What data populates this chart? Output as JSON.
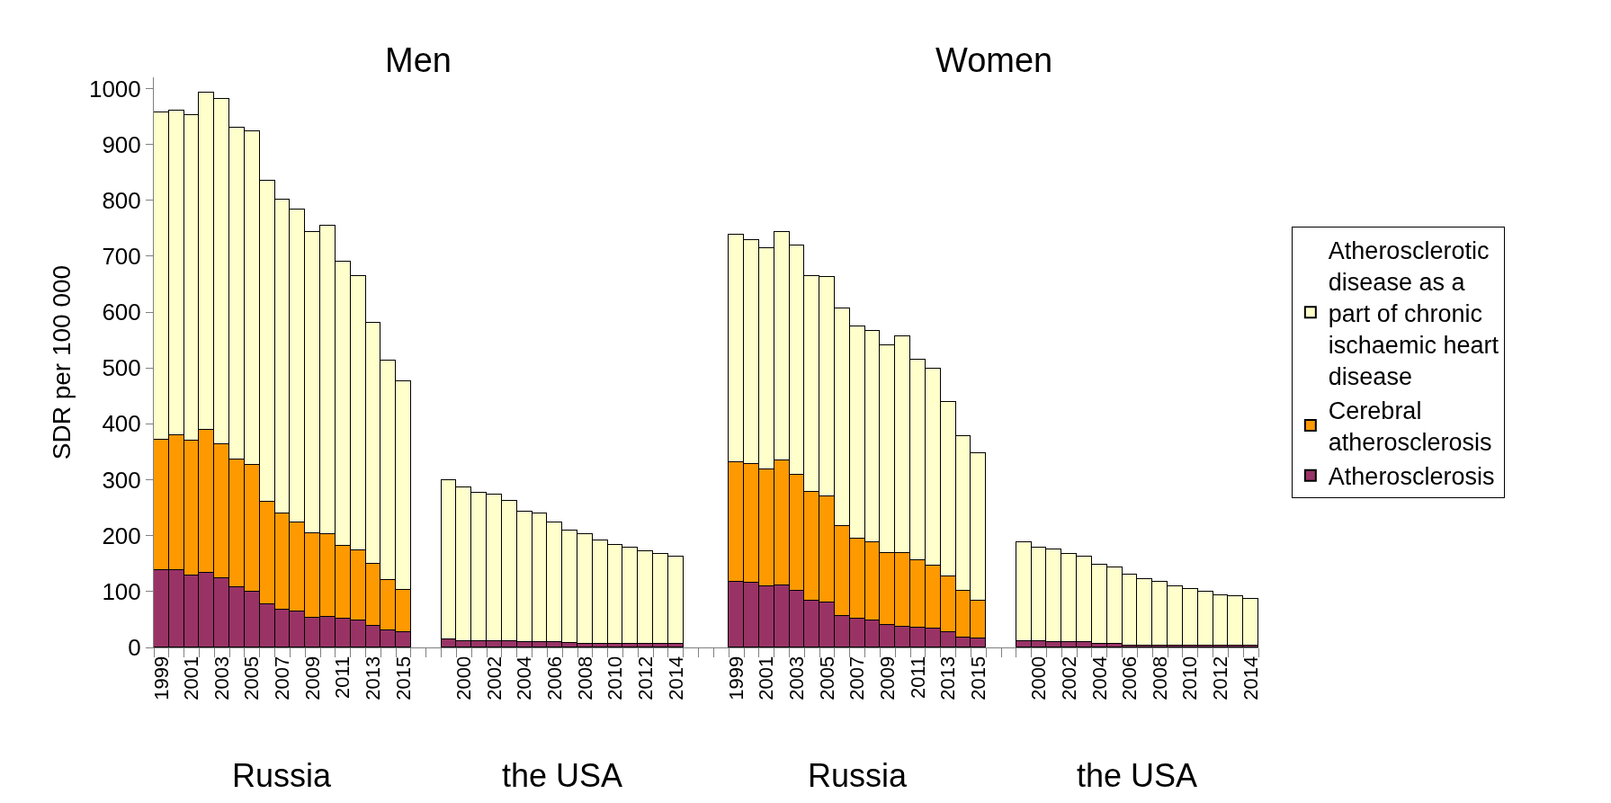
{
  "chart_data": {
    "type": "bar",
    "stacked": true,
    "ylabel": "SDR per 100 000",
    "categories": [
      "1999",
      null,
      "2001",
      null,
      "2003",
      null,
      "2005",
      null,
      "2007",
      null,
      "2009",
      null,
      "2011",
      null,
      "2013",
      null,
      "2015",
      null,
      null,
      null,
      "2000",
      null,
      "2002",
      null,
      "2004",
      null,
      "2006",
      null,
      "2008",
      null,
      "2010",
      null,
      "2012",
      null,
      "2014",
      null,
      null,
      null,
      "1999",
      null,
      "2001",
      null,
      "2003",
      null,
      "2005",
      null,
      "2007",
      null,
      "2009",
      null,
      "2011",
      null,
      "2013",
      null,
      "2015",
      null,
      null,
      null,
      "2000",
      null,
      "2002",
      null,
      "2004",
      null,
      "2006",
      null,
      "2008",
      null,
      "2010",
      null,
      "2012",
      null,
      "2014"
    ],
    "series": [
      {
        "name": "Atherosclerosis",
        "color": "#993366",
        "values": [
          139,
          139,
          129,
          134,
          124,
          107,
          100,
          78,
          68,
          64,
          53,
          55,
          51,
          49,
          39,
          31,
          27,
          null,
          null,
          14,
          12,
          12,
          12,
          11,
          10,
          10,
          9,
          8,
          7,
          6,
          6,
          6,
          6,
          6,
          6,
          null,
          null,
          null,
          118,
          116,
          109,
          111,
          101,
          84,
          80,
          57,
          52,
          48,
          41,
          37,
          36,
          33,
          28,
          18,
          16,
          null,
          null,
          12,
          12,
          10,
          10,
          10,
          7,
          7,
          4,
          4,
          4,
          4,
          4,
          4,
          4,
          4,
          4
        ]
      },
      {
        "name": "Cerebral atherosclerosis",
        "color": "#ff9900",
        "values": [
          233,
          241,
          241,
          255,
          239,
          229,
          226,
          183,
          171,
          160,
          152,
          147,
          131,
          124,
          110,
          89,
          76,
          null,
          null,
          0,
          0,
          0,
          0,
          0,
          0,
          0,
          0,
          0,
          0,
          0,
          0,
          0,
          0,
          0,
          0,
          null,
          null,
          null,
          213,
          212,
          210,
          224,
          208,
          194,
          190,
          161,
          143,
          140,
          128,
          132,
          120,
          114,
          99,
          83,
          68,
          null,
          null,
          0,
          0,
          0,
          0,
          0,
          0,
          0,
          0,
          0,
          0,
          0,
          0,
          0,
          0,
          0,
          0
        ]
      },
      {
        "name": "Atherosclerotic disease as a part of chronic ischaemic heart disease",
        "color": "#ffffcc",
        "values": [
          585,
          580,
          583,
          604,
          618,
          594,
          597,
          574,
          562,
          560,
          538,
          553,
          509,
          492,
          432,
          394,
          374,
          null,
          null,
          285,
          275,
          265,
          261,
          252,
          233,
          229,
          215,
          201,
          195,
          186,
          178,
          172,
          166,
          162,
          157,
          null,
          null,
          null,
          407,
          401,
          395,
          408,
          410,
          387,
          393,
          389,
          380,
          378,
          371,
          388,
          359,
          352,
          313,
          277,
          264,
          null,
          null,
          177,
          167,
          165,
          157,
          152,
          141,
          136,
          126,
          119,
          114,
          105,
          100,
          95,
          90,
          87,
          83
        ]
      }
    ],
    "ylim": [
      0,
      1020
    ],
    "yticks": [
      0,
      100,
      200,
      300,
      400,
      500,
      600,
      700,
      800,
      900,
      1000
    ],
    "legend": "right",
    "annotations": [
      "Men",
      "Women",
      "Russia",
      "the USA",
      "Russia",
      "the USA"
    ]
  }
}
